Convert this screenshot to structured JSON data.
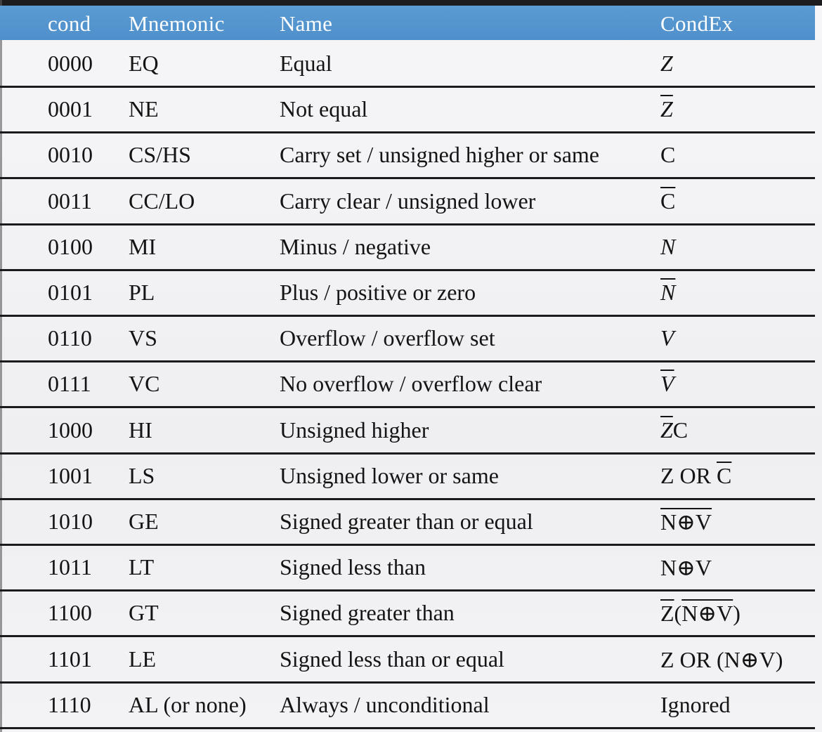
{
  "table": {
    "headers": {
      "cond": "cond",
      "mnemonic": "Mnemonic",
      "name": "Name",
      "condex": "CondEx"
    },
    "rows": [
      {
        "cond": "0000",
        "mnemonic": "EQ",
        "name": "Equal",
        "condex": [
          {
            "t": "Z",
            "it": true,
            "ov": false
          }
        ]
      },
      {
        "cond": "0001",
        "mnemonic": "NE",
        "name": "Not equal",
        "condex": [
          {
            "t": "Z",
            "it": true,
            "ov": true
          }
        ]
      },
      {
        "cond": "0010",
        "mnemonic": "CS/HS",
        "name": "Carry set / unsigned higher or same",
        "condex": [
          {
            "t": "C",
            "it": false,
            "ov": false
          }
        ]
      },
      {
        "cond": "0011",
        "mnemonic": "CC/LO",
        "name": "Carry clear / unsigned lower",
        "condex": [
          {
            "t": "C",
            "it": false,
            "ov": true
          }
        ]
      },
      {
        "cond": "0100",
        "mnemonic": "MI",
        "name": "Minus / negative",
        "condex": [
          {
            "t": "N",
            "it": true,
            "ov": false
          }
        ]
      },
      {
        "cond": "0101",
        "mnemonic": "PL",
        "name": "Plus / positive or zero",
        "condex": [
          {
            "t": "N",
            "it": true,
            "ov": true
          }
        ]
      },
      {
        "cond": "0110",
        "mnemonic": "VS",
        "name": "Overflow / overflow set",
        "condex": [
          {
            "t": "V",
            "it": true,
            "ov": false
          }
        ]
      },
      {
        "cond": "0111",
        "mnemonic": "VC",
        "name": "No overflow / overflow clear",
        "condex": [
          {
            "t": "V",
            "it": true,
            "ov": true
          }
        ]
      },
      {
        "cond": "1000",
        "mnemonic": "HI",
        "name": "Unsigned higher",
        "condex": [
          {
            "t": "Z",
            "it": true,
            "ov": true
          },
          {
            "t": "C",
            "it": false,
            "ov": false
          }
        ]
      },
      {
        "cond": "1001",
        "mnemonic": "LS",
        "name": "Unsigned lower or same",
        "condex": [
          {
            "t": "Z OR ",
            "it": false,
            "ov": false
          },
          {
            "t": "C",
            "it": false,
            "ov": true
          }
        ]
      },
      {
        "cond": "1010",
        "mnemonic": "GE",
        "name": "Signed greater than or equal",
        "condex": [
          {
            "t": "N⊕V",
            "it": false,
            "ov": true
          }
        ]
      },
      {
        "cond": "1011",
        "mnemonic": "LT",
        "name": "Signed less than",
        "condex": [
          {
            "t": "N⊕V",
            "it": false,
            "ov": false
          }
        ]
      },
      {
        "cond": "1100",
        "mnemonic": "GT",
        "name": "Signed greater than",
        "condex": [
          {
            "t": "Z",
            "it": false,
            "ov": true
          },
          {
            "t": "(",
            "it": false,
            "ov": false
          },
          {
            "t": "N⊕V",
            "it": false,
            "ov": true
          },
          {
            "t": ")",
            "it": false,
            "ov": false
          }
        ]
      },
      {
        "cond": "1101",
        "mnemonic": "LE",
        "name": "Signed less than or equal",
        "condex": [
          {
            "t": "Z OR (N⊕V)",
            "it": false,
            "ov": false
          }
        ]
      },
      {
        "cond": "1110",
        "mnemonic": "AL (or none)",
        "name": "Always / unconditional",
        "condex": [
          {
            "t": "Ignored",
            "it": false,
            "ov": false
          }
        ]
      }
    ]
  }
}
